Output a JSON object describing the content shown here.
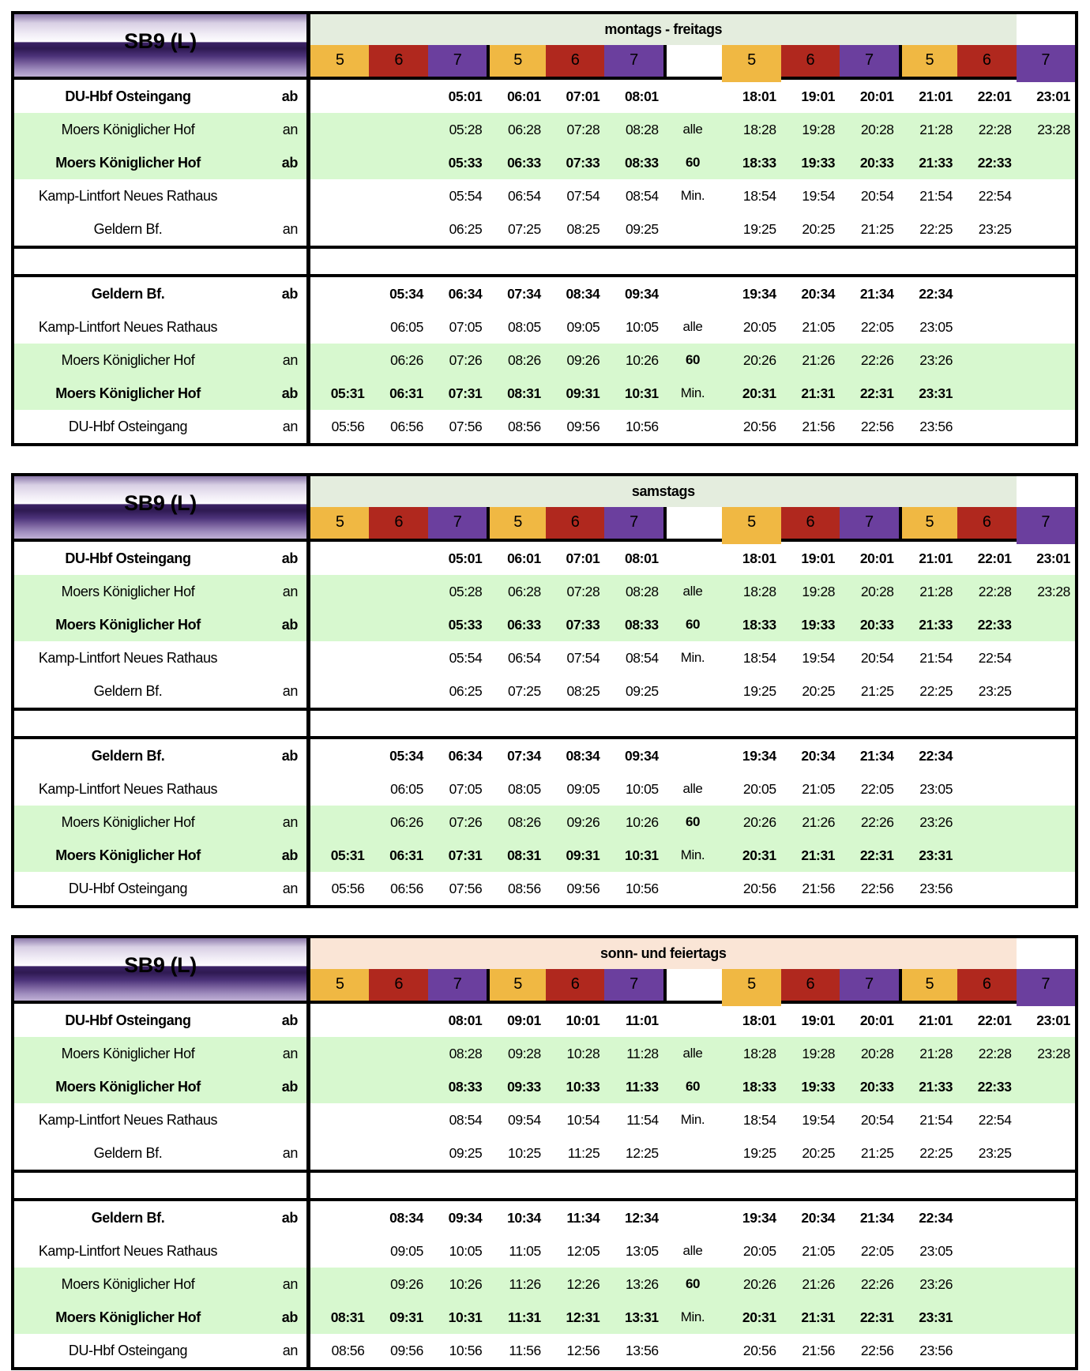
{
  "line_label": "SB9 (L)",
  "colors": {
    "zone_yellow": "#F0B843",
    "zone_red": "#B0281E",
    "zone_purple": "#6B3F9E",
    "row_green": "#D7F8CF",
    "border_black": "#000000"
  },
  "zone_numbers": [
    "5",
    "6",
    "7",
    "5",
    "6",
    "7",
    "",
    "5",
    "6",
    "7",
    "5",
    "6",
    "7"
  ],
  "tables": [
    {
      "id": "monfri",
      "day_label": "montags - freitags",
      "band_color": "#E4EDDE",
      "rows": [
        {
          "station": "DU-Hbf Osteingang",
          "tag": "ab",
          "bold": true,
          "green": false,
          "times": [
            "",
            "",
            "05:01",
            "06:01",
            "07:01",
            "08:01",
            "",
            "18:01",
            "19:01",
            "20:01",
            "21:01",
            "22:01",
            "23:01"
          ]
        },
        {
          "station": "Moers Königlicher Hof",
          "tag": "an",
          "bold": false,
          "green": true,
          "times": [
            "",
            "",
            "05:28",
            "06:28",
            "07:28",
            "08:28",
            "alle",
            "18:28",
            "19:28",
            "20:28",
            "21:28",
            "22:28",
            "23:28"
          ]
        },
        {
          "station": "Moers Königlicher Hof",
          "tag": "ab",
          "bold": true,
          "green": true,
          "times": [
            "",
            "",
            "05:33",
            "06:33",
            "07:33",
            "08:33",
            "60",
            "18:33",
            "19:33",
            "20:33",
            "21:33",
            "22:33",
            ""
          ]
        },
        {
          "station": "Kamp-Lintfort Neues Rathaus",
          "tag": "",
          "bold": false,
          "green": false,
          "times": [
            "",
            "",
            "05:54",
            "06:54",
            "07:54",
            "08:54",
            "Min.",
            "18:54",
            "19:54",
            "20:54",
            "21:54",
            "22:54",
            ""
          ]
        },
        {
          "station": "Geldern Bf.",
          "tag": "an",
          "bold": false,
          "green": false,
          "times": [
            "",
            "",
            "06:25",
            "07:25",
            "08:25",
            "09:25",
            "",
            "19:25",
            "20:25",
            "21:25",
            "22:25",
            "23:25",
            ""
          ]
        },
        {
          "station": "Geldern Bf.",
          "tag": "ab",
          "bold": true,
          "green": false,
          "times": [
            "",
            "05:34",
            "06:34",
            "07:34",
            "08:34",
            "09:34",
            "",
            "19:34",
            "20:34",
            "21:34",
            "22:34",
            "",
            ""
          ]
        },
        {
          "station": "Kamp-Lintfort Neues Rathaus",
          "tag": "",
          "bold": false,
          "green": false,
          "times": [
            "",
            "06:05",
            "07:05",
            "08:05",
            "09:05",
            "10:05",
            "alle",
            "20:05",
            "21:05",
            "22:05",
            "23:05",
            "",
            ""
          ]
        },
        {
          "station": "Moers Königlicher Hof",
          "tag": "an",
          "bold": false,
          "green": true,
          "times": [
            "",
            "06:26",
            "07:26",
            "08:26",
            "09:26",
            "10:26",
            "60",
            "20:26",
            "21:26",
            "22:26",
            "23:26",
            "",
            ""
          ]
        },
        {
          "station": "Moers Königlicher Hof",
          "tag": "ab",
          "bold": true,
          "green": true,
          "times": [
            "05:31",
            "06:31",
            "07:31",
            "08:31",
            "09:31",
            "10:31",
            "Min.",
            "20:31",
            "21:31",
            "22:31",
            "23:31",
            "",
            ""
          ]
        },
        {
          "station": "DU-Hbf Osteingang",
          "tag": "an",
          "bold": false,
          "green": false,
          "times": [
            "05:56",
            "06:56",
            "07:56",
            "08:56",
            "09:56",
            "10:56",
            "",
            "20:56",
            "21:56",
            "22:56",
            "23:56",
            "",
            ""
          ]
        }
      ]
    },
    {
      "id": "sat",
      "day_label": "samstags",
      "band_color": "#E4EDDE",
      "rows": [
        {
          "station": "DU-Hbf Osteingang",
          "tag": "ab",
          "bold": true,
          "green": false,
          "times": [
            "",
            "",
            "05:01",
            "06:01",
            "07:01",
            "08:01",
            "",
            "18:01",
            "19:01",
            "20:01",
            "21:01",
            "22:01",
            "23:01"
          ]
        },
        {
          "station": "Moers Königlicher Hof",
          "tag": "an",
          "bold": false,
          "green": true,
          "times": [
            "",
            "",
            "05:28",
            "06:28",
            "07:28",
            "08:28",
            "alle",
            "18:28",
            "19:28",
            "20:28",
            "21:28",
            "22:28",
            "23:28"
          ]
        },
        {
          "station": "Moers Königlicher Hof",
          "tag": "ab",
          "bold": true,
          "green": true,
          "times": [
            "",
            "",
            "05:33",
            "06:33",
            "07:33",
            "08:33",
            "60",
            "18:33",
            "19:33",
            "20:33",
            "21:33",
            "22:33",
            ""
          ]
        },
        {
          "station": "Kamp-Lintfort Neues Rathaus",
          "tag": "",
          "bold": false,
          "green": false,
          "times": [
            "",
            "",
            "05:54",
            "06:54",
            "07:54",
            "08:54",
            "Min.",
            "18:54",
            "19:54",
            "20:54",
            "21:54",
            "22:54",
            ""
          ]
        },
        {
          "station": "Geldern Bf.",
          "tag": "an",
          "bold": false,
          "green": false,
          "times": [
            "",
            "",
            "06:25",
            "07:25",
            "08:25",
            "09:25",
            "",
            "19:25",
            "20:25",
            "21:25",
            "22:25",
            "23:25",
            ""
          ]
        },
        {
          "station": "Geldern Bf.",
          "tag": "ab",
          "bold": true,
          "green": false,
          "times": [
            "",
            "05:34",
            "06:34",
            "07:34",
            "08:34",
            "09:34",
            "",
            "19:34",
            "20:34",
            "21:34",
            "22:34",
            "",
            ""
          ]
        },
        {
          "station": "Kamp-Lintfort Neues Rathaus",
          "tag": "",
          "bold": false,
          "green": false,
          "times": [
            "",
            "06:05",
            "07:05",
            "08:05",
            "09:05",
            "10:05",
            "alle",
            "20:05",
            "21:05",
            "22:05",
            "23:05",
            "",
            ""
          ]
        },
        {
          "station": "Moers Königlicher Hof",
          "tag": "an",
          "bold": false,
          "green": true,
          "times": [
            "",
            "06:26",
            "07:26",
            "08:26",
            "09:26",
            "10:26",
            "60",
            "20:26",
            "21:26",
            "22:26",
            "23:26",
            "",
            ""
          ]
        },
        {
          "station": "Moers Königlicher Hof",
          "tag": "ab",
          "bold": true,
          "green": true,
          "times": [
            "05:31",
            "06:31",
            "07:31",
            "08:31",
            "09:31",
            "10:31",
            "Min.",
            "20:31",
            "21:31",
            "22:31",
            "23:31",
            "",
            ""
          ]
        },
        {
          "station": "DU-Hbf Osteingang",
          "tag": "an",
          "bold": false,
          "green": false,
          "times": [
            "05:56",
            "06:56",
            "07:56",
            "08:56",
            "09:56",
            "10:56",
            "",
            "20:56",
            "21:56",
            "22:56",
            "23:56",
            "",
            ""
          ]
        }
      ]
    },
    {
      "id": "sun",
      "day_label": "sonn- und feiertags",
      "band_color": "#FAE5D6",
      "rows": [
        {
          "station": "DU-Hbf Osteingang",
          "tag": "ab",
          "bold": true,
          "green": false,
          "times": [
            "",
            "",
            "08:01",
            "09:01",
            "10:01",
            "11:01",
            "",
            "18:01",
            "19:01",
            "20:01",
            "21:01",
            "22:01",
            "23:01"
          ]
        },
        {
          "station": "Moers Königlicher Hof",
          "tag": "an",
          "bold": false,
          "green": true,
          "times": [
            "",
            "",
            "08:28",
            "09:28",
            "10:28",
            "11:28",
            "alle",
            "18:28",
            "19:28",
            "20:28",
            "21:28",
            "22:28",
            "23:28"
          ]
        },
        {
          "station": "Moers Königlicher Hof",
          "tag": "ab",
          "bold": true,
          "green": true,
          "times": [
            "",
            "",
            "08:33",
            "09:33",
            "10:33",
            "11:33",
            "60",
            "18:33",
            "19:33",
            "20:33",
            "21:33",
            "22:33",
            ""
          ]
        },
        {
          "station": "Kamp-Lintfort Neues Rathaus",
          "tag": "",
          "bold": false,
          "green": false,
          "times": [
            "",
            "",
            "08:54",
            "09:54",
            "10:54",
            "11:54",
            "Min.",
            "18:54",
            "19:54",
            "20:54",
            "21:54",
            "22:54",
            ""
          ]
        },
        {
          "station": "Geldern Bf.",
          "tag": "an",
          "bold": false,
          "green": false,
          "times": [
            "",
            "",
            "09:25",
            "10:25",
            "11:25",
            "12:25",
            "",
            "19:25",
            "20:25",
            "21:25",
            "22:25",
            "23:25",
            ""
          ]
        },
        {
          "station": "Geldern Bf.",
          "tag": "ab",
          "bold": true,
          "green": false,
          "times": [
            "",
            "08:34",
            "09:34",
            "10:34",
            "11:34",
            "12:34",
            "",
            "19:34",
            "20:34",
            "21:34",
            "22:34",
            "",
            ""
          ]
        },
        {
          "station": "Kamp-Lintfort Neues Rathaus",
          "tag": "",
          "bold": false,
          "green": false,
          "times": [
            "",
            "09:05",
            "10:05",
            "11:05",
            "12:05",
            "13:05",
            "alle",
            "20:05",
            "21:05",
            "22:05",
            "23:05",
            "",
            ""
          ]
        },
        {
          "station": "Moers Königlicher Hof",
          "tag": "an",
          "bold": false,
          "green": true,
          "times": [
            "",
            "09:26",
            "10:26",
            "11:26",
            "12:26",
            "13:26",
            "60",
            "20:26",
            "21:26",
            "22:26",
            "23:26",
            "",
            ""
          ]
        },
        {
          "station": "Moers Königlicher Hof",
          "tag": "ab",
          "bold": true,
          "green": true,
          "times": [
            "08:31",
            "09:31",
            "10:31",
            "11:31",
            "12:31",
            "13:31",
            "Min.",
            "20:31",
            "21:31",
            "22:31",
            "23:31",
            "",
            ""
          ]
        },
        {
          "station": "DU-Hbf Osteingang",
          "tag": "an",
          "bold": false,
          "green": false,
          "times": [
            "08:56",
            "09:56",
            "10:56",
            "11:56",
            "12:56",
            "13:56",
            "",
            "20:56",
            "21:56",
            "22:56",
            "23:56",
            "",
            ""
          ]
        }
      ]
    }
  ]
}
